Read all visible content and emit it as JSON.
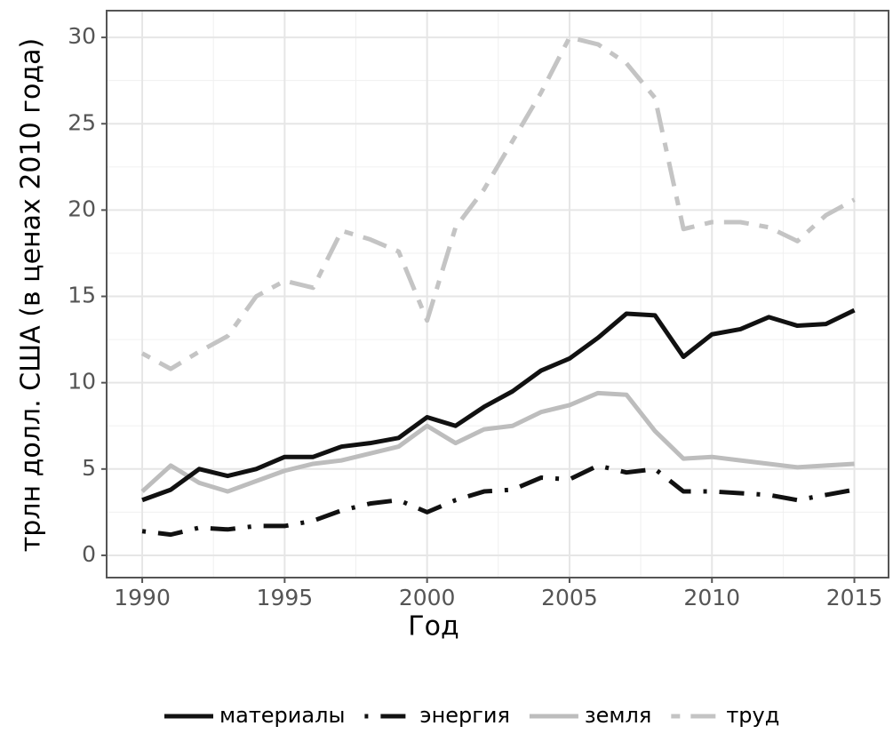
{
  "chart_data": {
    "type": "line",
    "x_label": "Год",
    "y_label": "трлн долл. США (в ценах 2010 года)",
    "x": [
      1990,
      1991,
      1992,
      1993,
      1994,
      1995,
      1996,
      1997,
      1998,
      1999,
      2000,
      2001,
      2002,
      2003,
      2004,
      2005,
      2006,
      2007,
      2008,
      2009,
      2010,
      2011,
      2012,
      2013,
      2014,
      2015
    ],
    "series": [
      {
        "name": "материалы",
        "color": "#111111",
        "dash": "solid",
        "values": [
          3.2,
          3.8,
          5.0,
          4.6,
          5.0,
          5.7,
          5.7,
          6.3,
          6.5,
          6.8,
          8.0,
          7.5,
          8.6,
          9.5,
          10.7,
          11.4,
          12.6,
          14.0,
          13.9,
          11.5,
          12.8,
          13.1,
          13.8,
          13.3,
          13.4,
          14.2
        ]
      },
      {
        "name": "энергия",
        "color": "#111111",
        "dash": "dotdash",
        "values": [
          1.4,
          1.2,
          1.6,
          1.5,
          1.7,
          1.7,
          2.0,
          2.6,
          3.0,
          3.2,
          2.5,
          3.2,
          3.7,
          3.8,
          4.5,
          4.4,
          5.2,
          4.8,
          5.0,
          3.7,
          3.7,
          3.6,
          3.5,
          3.2,
          3.5,
          3.8
        ]
      },
      {
        "name": "земля",
        "color": "#bdbdbd",
        "dash": "solid",
        "values": [
          3.7,
          5.2,
          4.2,
          3.7,
          4.3,
          4.9,
          5.3,
          5.5,
          5.9,
          6.3,
          7.5,
          6.5,
          7.3,
          7.5,
          8.3,
          8.7,
          9.4,
          9.3,
          7.2,
          5.6,
          5.7,
          5.5,
          5.3,
          5.1,
          5.2,
          5.3
        ]
      },
      {
        "name": "труд",
        "color": "#c4c4c4",
        "dash": "twodash",
        "values": [
          11.7,
          10.8,
          11.8,
          12.7,
          15.0,
          15.9,
          15.5,
          18.8,
          18.3,
          17.6,
          13.6,
          19.0,
          21.2,
          24.0,
          26.8,
          30.0,
          29.6,
          28.5,
          26.5,
          18.9,
          19.3,
          19.3,
          19.0,
          18.2,
          19.7,
          20.6
        ]
      }
    ],
    "xlim": [
      1988.75,
      2016.2
    ],
    "xticks": [
      1990,
      1995,
      2000,
      2005,
      2010,
      2015
    ],
    "ylim": [
      -1.29,
      31.55
    ],
    "yticks": [
      0,
      5,
      10,
      15,
      20,
      25,
      30
    ],
    "grid": true,
    "legend": "bottom"
  }
}
